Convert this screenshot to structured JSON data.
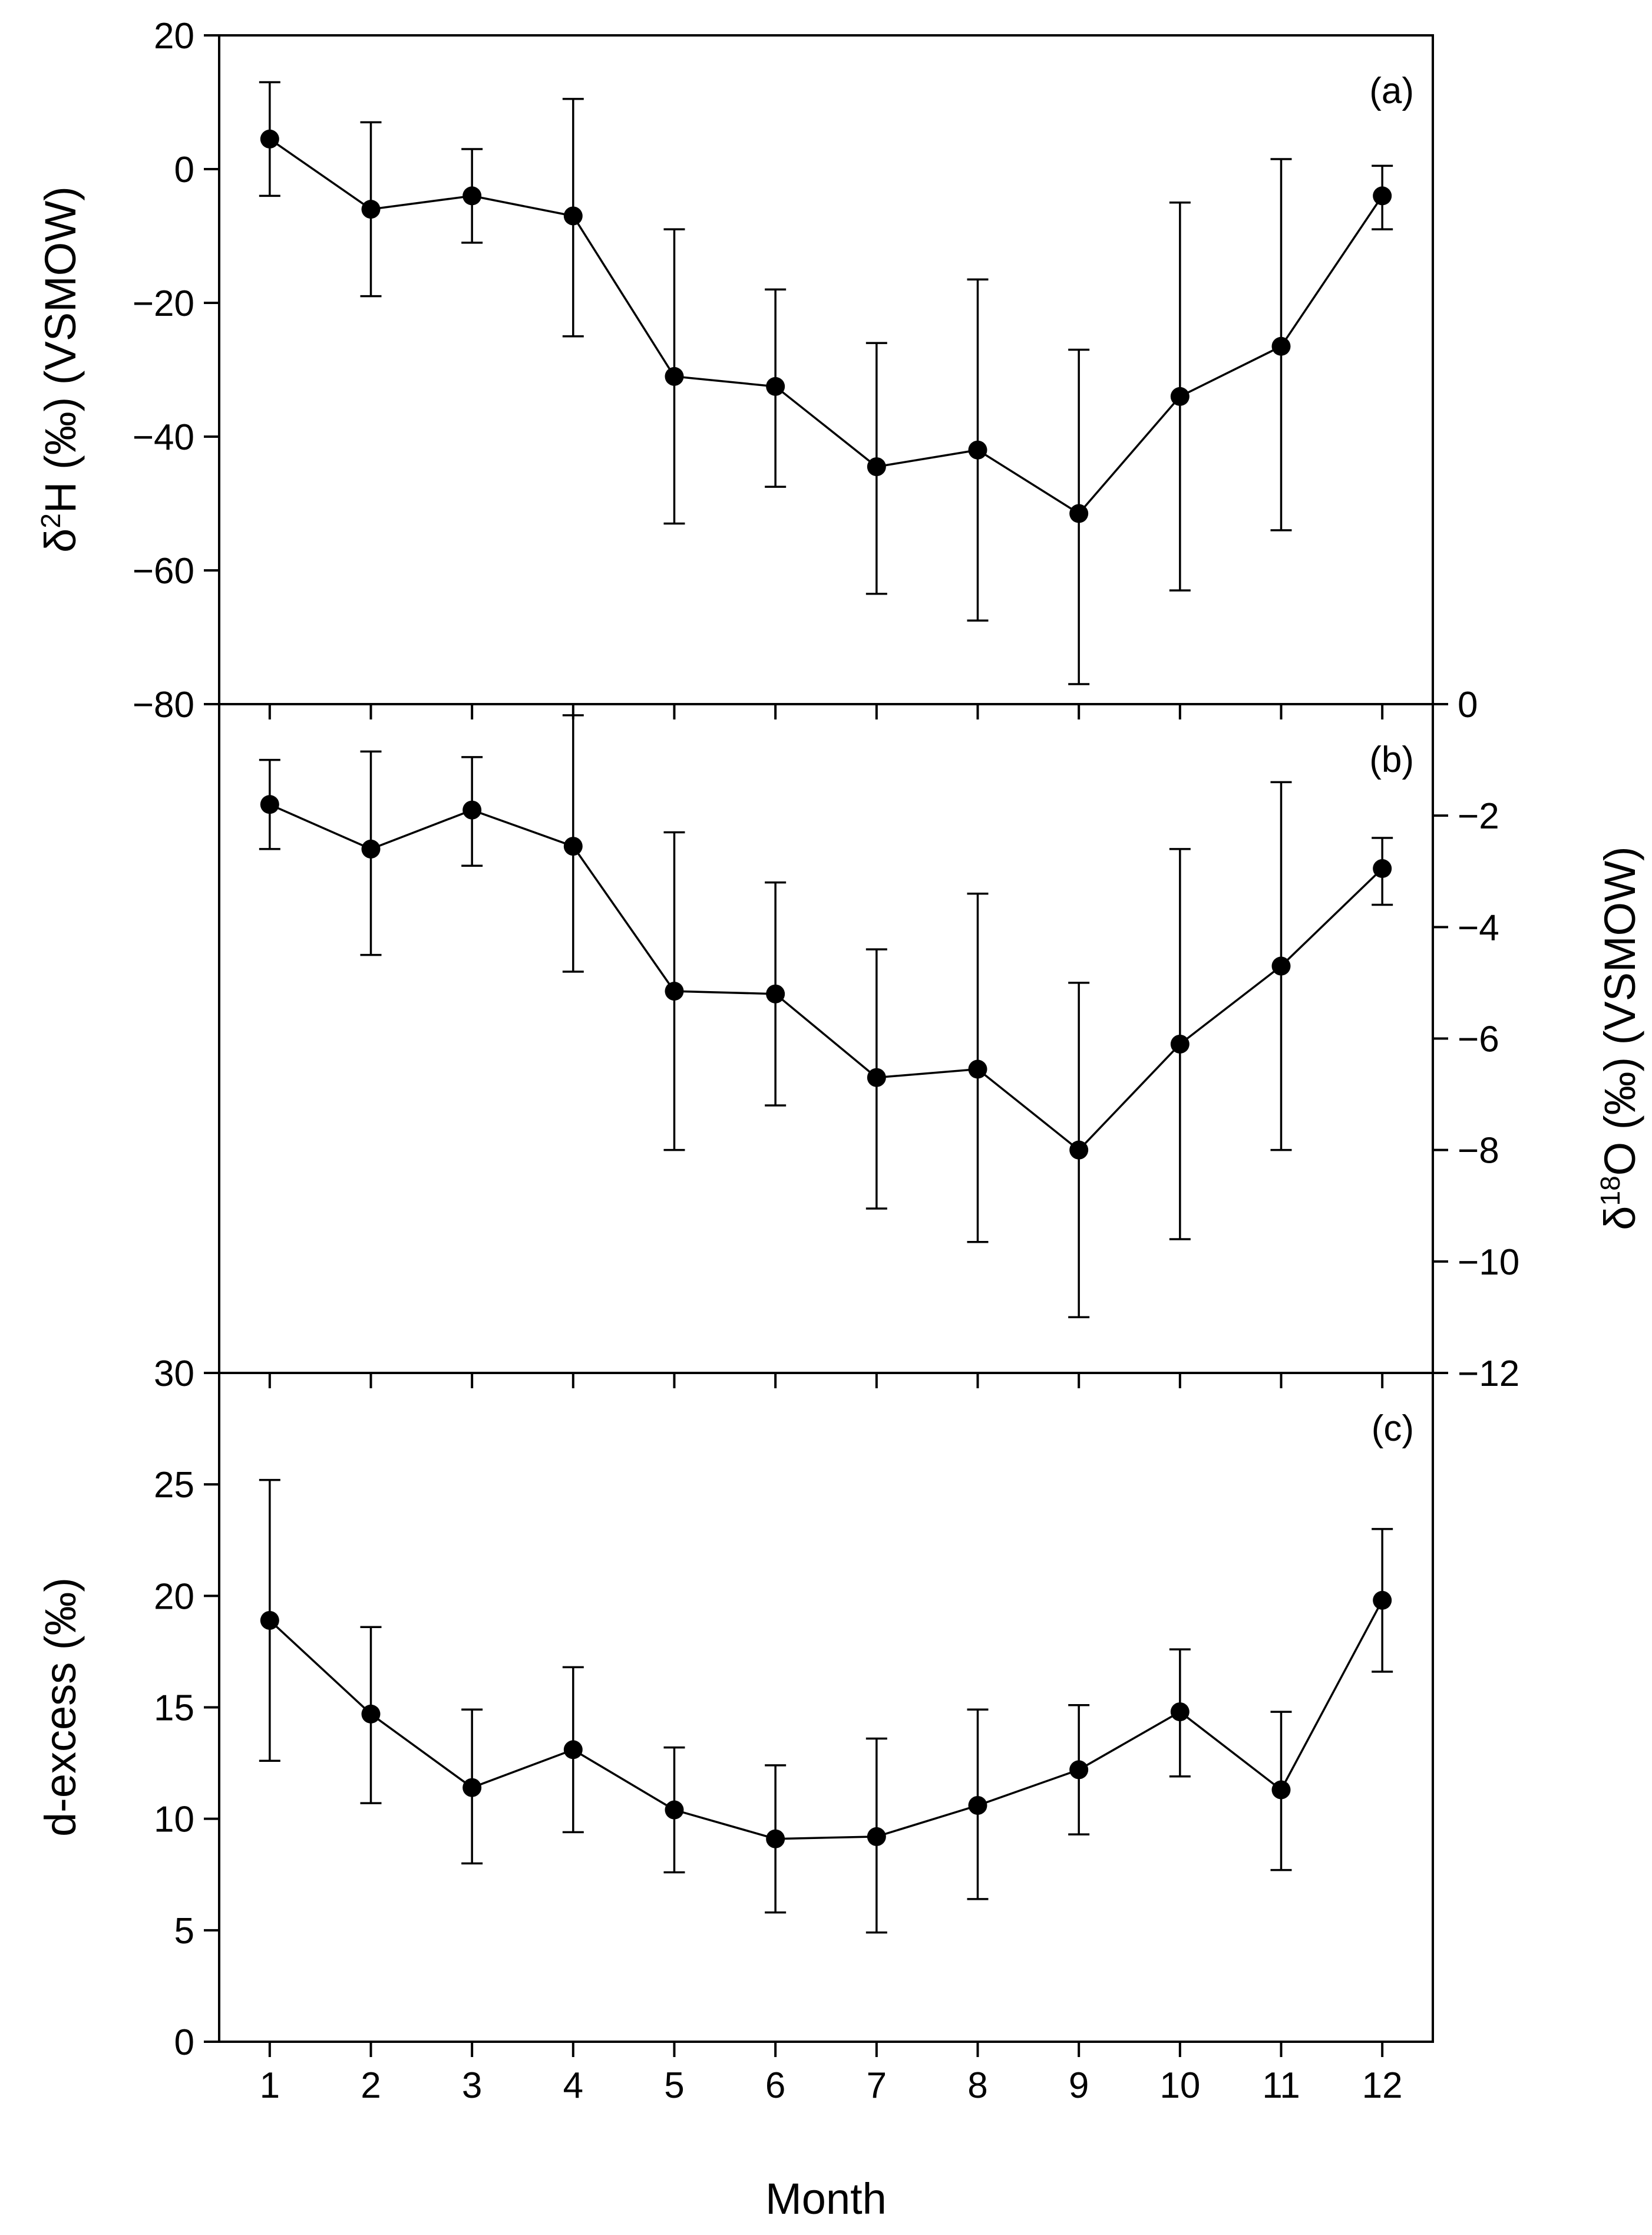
{
  "chart_data": [
    {
      "type": "line",
      "panel_label": "(a)",
      "ylabel": "δ²H (‰) (VSMOW)",
      "ylabel_base": "δ",
      "ylabel_sup": "2",
      "ylabel_rest": "H (‰) (VSMOW)",
      "y_axis_side": "left",
      "ylim": [
        -80,
        20
      ],
      "yticks": [
        -80,
        -60,
        -40,
        -20,
        0,
        20
      ],
      "ytick_labels": [
        "−80",
        "−60",
        "−40",
        "−20",
        "0",
        "20"
      ],
      "x": [
        1,
        2,
        3,
        4,
        5,
        6,
        7,
        8,
        9,
        10,
        11,
        12
      ],
      "y": [
        4.5,
        -6.0,
        -4.0,
        -7.0,
        -31.0,
        -32.5,
        -44.5,
        -42.0,
        -51.5,
        -34.0,
        -26.5,
        -4.0
      ],
      "err_upper": [
        13.0,
        7.0,
        3.0,
        10.5,
        -9.0,
        -18.0,
        -26.0,
        -16.5,
        -27.0,
        -5.0,
        1.5,
        0.5
      ],
      "err_lower": [
        -4.0,
        -19.0,
        -11.0,
        -25.0,
        -53.0,
        -47.5,
        -63.5,
        -67.5,
        -77.0,
        -63.0,
        -54.0,
        -9.0
      ]
    },
    {
      "type": "line",
      "panel_label": "(b)",
      "ylabel": "δ¹⁸O (‰) (VSMOW)",
      "ylabel_base": "δ",
      "ylabel_sup": "18",
      "ylabel_rest": "O (‰) (VSMOW)",
      "y_axis_side": "right",
      "ylim": [
        -12,
        0
      ],
      "yticks": [
        -12,
        -10,
        -8,
        -6,
        -4,
        -2,
        0
      ],
      "ytick_labels": [
        "−12",
        "−10",
        "−8",
        "−6",
        "−4",
        "−2",
        "0"
      ],
      "x": [
        1,
        2,
        3,
        4,
        5,
        6,
        7,
        8,
        9,
        10,
        11,
        12
      ],
      "y": [
        -1.8,
        -2.6,
        -1.9,
        -2.55,
        -5.15,
        -5.2,
        -6.7,
        -6.55,
        -8.0,
        -6.1,
        -4.7,
        -2.95
      ],
      "err_upper": [
        -1.0,
        -0.85,
        -0.95,
        -0.2,
        -2.3,
        -3.2,
        -4.4,
        -3.4,
        -5.0,
        -2.6,
        -1.4,
        -2.4
      ],
      "err_lower": [
        -2.6,
        -4.5,
        -2.9,
        -4.8,
        -8.0,
        -7.2,
        -9.05,
        -9.65,
        -11.0,
        -9.6,
        -8.0,
        -3.6
      ]
    },
    {
      "type": "line",
      "panel_label": "(c)",
      "ylabel": "d-excess (‰)",
      "y_axis_side": "left",
      "ylim": [
        0,
        30
      ],
      "yticks": [
        0,
        5,
        10,
        15,
        20,
        25,
        30
      ],
      "ytick_labels": [
        "0",
        "5",
        "10",
        "15",
        "20",
        "25",
        "30"
      ],
      "xlabel": "Month",
      "xticks": [
        1,
        2,
        3,
        4,
        5,
        6,
        7,
        8,
        9,
        10,
        11,
        12
      ],
      "xtick_labels": [
        "1",
        "2",
        "3",
        "4",
        "5",
        "6",
        "7",
        "8",
        "9",
        "10",
        "11",
        "12"
      ],
      "xlim": [
        0.5,
        12.5
      ],
      "x": [
        1,
        2,
        3,
        4,
        5,
        6,
        7,
        8,
        9,
        10,
        11,
        12
      ],
      "y": [
        18.9,
        14.7,
        11.4,
        13.1,
        10.4,
        9.1,
        9.2,
        10.6,
        12.2,
        14.8,
        11.3,
        19.8
      ],
      "err_upper": [
        25.2,
        18.6,
        14.9,
        16.8,
        13.2,
        12.4,
        13.6,
        14.9,
        15.1,
        17.6,
        14.8,
        23.0
      ],
      "err_lower": [
        12.6,
        10.7,
        8.0,
        9.4,
        7.6,
        5.8,
        4.9,
        6.4,
        9.3,
        11.9,
        7.7,
        16.6
      ]
    }
  ]
}
